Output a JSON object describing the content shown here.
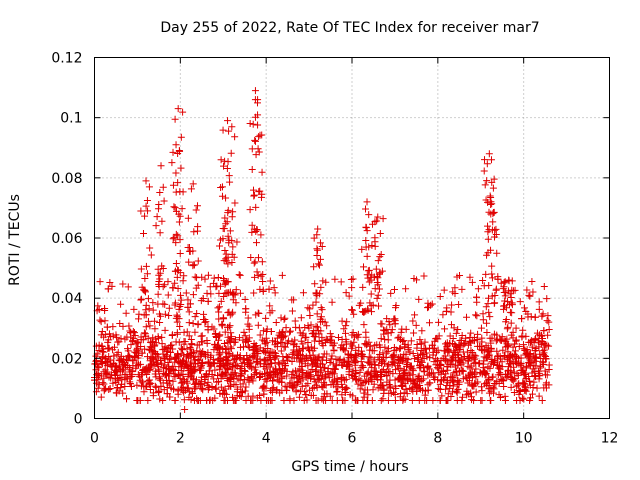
{
  "chart_data": {
    "type": "scatter",
    "title": "Day 255 of 2022, Rate Of TEC Index for receiver mar7",
    "xlabel": "GPS time / hours",
    "ylabel": "ROTI / TECUs",
    "xlim": [
      0,
      12
    ],
    "ylim": [
      0,
      0.12
    ],
    "xticks": [
      0,
      2,
      4,
      6,
      8,
      10,
      12
    ],
    "yticks": [
      0,
      0.02,
      0.04,
      0.06,
      0.08,
      0.1,
      0.12
    ],
    "xtick_labels": [
      "0",
      "2",
      "4",
      "6",
      "8",
      "10",
      "12"
    ],
    "ytick_labels": [
      "0",
      "0.02",
      "0.04",
      "0.06",
      "0.08",
      "0.1",
      "0.12"
    ],
    "grid": true,
    "marker": "plus",
    "color": "#e00000",
    "series": [
      {
        "name": "ROTI",
        "x_range": [
          0,
          10.6
        ],
        "typical_range": [
          0.008,
          0.032
        ],
        "median": 0.018,
        "peaks": [
          {
            "x": 1.2,
            "y": 0.079
          },
          {
            "x": 1.55,
            "y": 0.084
          },
          {
            "x": 1.9,
            "y": 0.091
          },
          {
            "x": 1.95,
            "y": 0.103
          },
          {
            "x": 2.3,
            "y": 0.078
          },
          {
            "x": 2.95,
            "y": 0.086
          },
          {
            "x": 3.1,
            "y": 0.099
          },
          {
            "x": 3.2,
            "y": 0.097
          },
          {
            "x": 3.75,
            "y": 0.109
          },
          {
            "x": 3.8,
            "y": 0.106
          },
          {
            "x": 5.2,
            "y": 0.063
          },
          {
            "x": 6.35,
            "y": 0.072
          },
          {
            "x": 6.6,
            "y": 0.067
          },
          {
            "x": 9.2,
            "y": 0.088
          },
          {
            "x": 9.25,
            "y": 0.086
          },
          {
            "x": 9.65,
            "y": 0.046
          }
        ],
        "minimum": {
          "x": 2.1,
          "y": 0.003
        }
      }
    ]
  }
}
